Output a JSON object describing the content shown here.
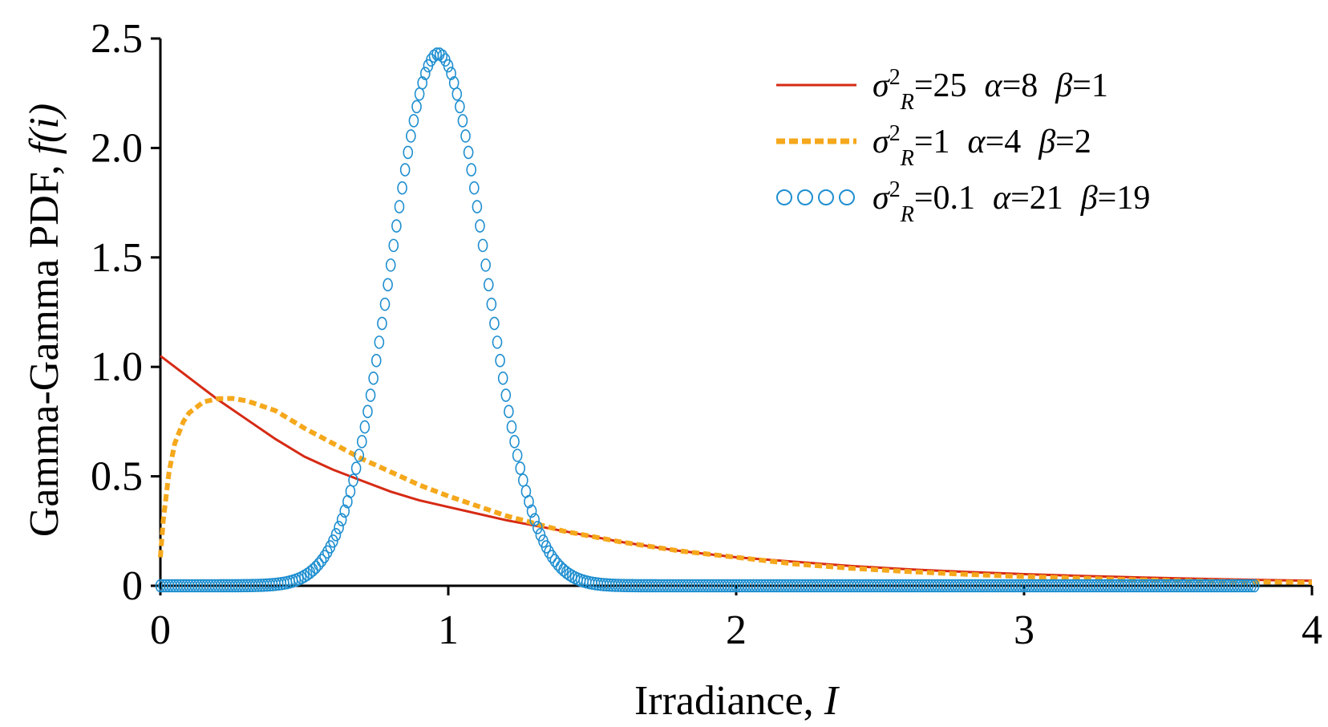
{
  "chart_data": {
    "type": "line",
    "xlabel": {
      "text": "Irradiance, ",
      "var": "I"
    },
    "ylabel": {
      "text": "Gamma-Gamma PDF, ",
      "var": "f(i)"
    },
    "xlim": [
      0,
      4
    ],
    "ylim": [
      0,
      2.5
    ],
    "xticks": [
      "0",
      "1",
      "2",
      "3",
      "4"
    ],
    "xtick_values": [
      0,
      1,
      2,
      3,
      4
    ],
    "yticks": [
      "0",
      "0.5",
      "1.0",
      "1.5",
      "2.0",
      "2.5"
    ],
    "ytick_values": [
      0,
      0.5,
      1.0,
      1.5,
      2.0,
      2.5
    ],
    "grid": false,
    "legend_position": "top-right",
    "series": [
      {
        "name": "σ²R=25  α=8  β=1",
        "legend": {
          "sigma": "σ",
          "sup": "2",
          "sub": "R",
          "sigma_val": "=25",
          "alpha": "α",
          "alpha_val": "=8",
          "beta": "β",
          "beta_val": "=1"
        },
        "color": "#d62a14",
        "style": "solid",
        "x": [
          0,
          0.1,
          0.2,
          0.3,
          0.4,
          0.5,
          0.6,
          0.7,
          0.8,
          0.9,
          1.0,
          1.2,
          1.4,
          1.6,
          1.8,
          2.0,
          2.2,
          2.4,
          2.6,
          2.8,
          3.0,
          3.2,
          3.4,
          3.6,
          3.8,
          4.0
        ],
        "y": [
          1.05,
          0.95,
          0.85,
          0.76,
          0.67,
          0.59,
          0.53,
          0.48,
          0.43,
          0.39,
          0.36,
          0.3,
          0.25,
          0.2,
          0.16,
          0.13,
          0.11,
          0.09,
          0.075,
          0.063,
          0.053,
          0.045,
          0.038,
          0.032,
          0.027,
          0.023
        ]
      },
      {
        "name": "σ²R=1  α=4  β=2",
        "legend": {
          "sigma": "σ",
          "sup": "2",
          "sub": "R",
          "sigma_val": "=1",
          "alpha": "α",
          "alpha_val": "=4",
          "beta": "β",
          "beta_val": "=2"
        },
        "color": "#f5a81c",
        "style": "dotted",
        "x": [
          0,
          0.01,
          0.03,
          0.05,
          0.08,
          0.1,
          0.15,
          0.2,
          0.25,
          0.3,
          0.4,
          0.5,
          0.6,
          0.7,
          0.8,
          0.9,
          1.0,
          1.2,
          1.4,
          1.6,
          1.8,
          2.0,
          2.2,
          2.4,
          2.6,
          2.8,
          3.0,
          3.2,
          3.4,
          3.6,
          3.8,
          4.0
        ],
        "y": [
          0.13,
          0.3,
          0.52,
          0.65,
          0.75,
          0.79,
          0.84,
          0.855,
          0.856,
          0.845,
          0.8,
          0.72,
          0.65,
          0.58,
          0.52,
          0.46,
          0.41,
          0.32,
          0.25,
          0.2,
          0.16,
          0.13,
          0.1,
          0.08,
          0.065,
          0.052,
          0.042,
          0.034,
          0.027,
          0.022,
          0.018,
          0.015
        ]
      },
      {
        "name": "σ²R=0.1  α=21  β=19",
        "legend": {
          "sigma": "σ",
          "sup": "2",
          "sub": "R",
          "sigma_val": "=0.1",
          "alpha": "α",
          "alpha_val": "=21",
          "beta": "β",
          "beta_val": "=19"
        },
        "color": "#1f8fd0",
        "style": "circles",
        "mu": 0.965,
        "sd": 0.164,
        "peak": 2.43,
        "x_range": [
          0,
          3.8
        ],
        "x_step": 0.01
      }
    ]
  }
}
